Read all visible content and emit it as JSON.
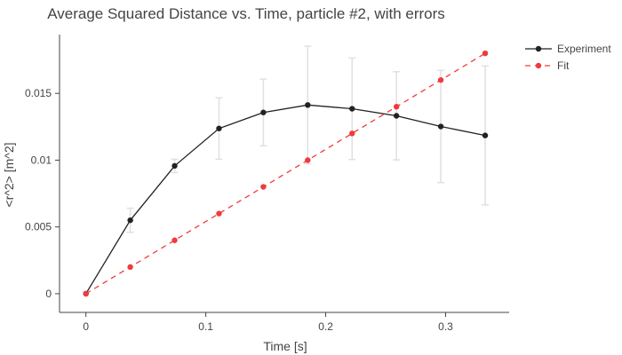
{
  "chart_data": {
    "type": "line",
    "title": "Average Squared Distance vs. Time, particle #2, with errors",
    "xlabel": "Time [s]",
    "ylabel": "<r^2> [m^2]",
    "xlim": [
      -0.022,
      0.353
    ],
    "ylim": [
      -0.0014,
      0.0194
    ],
    "x_ticks": [
      0,
      0.1,
      0.2,
      0.3
    ],
    "x_tick_labels": [
      "0",
      "0.1",
      "0.2",
      "0.3"
    ],
    "y_ticks": [
      0,
      0.005,
      0.01,
      0.015
    ],
    "y_tick_labels": [
      "0",
      "0.005",
      "0.01",
      "0.015"
    ],
    "legend_position": "top-right",
    "grid": false,
    "series": [
      {
        "name": "Experiment",
        "color": "#222222",
        "dash": "solid",
        "x": [
          0,
          0.037,
          0.074,
          0.111,
          0.148,
          0.185,
          0.222,
          0.259,
          0.296,
          0.333
        ],
        "y": [
          0,
          0.0055,
          0.00957,
          0.01237,
          0.01357,
          0.01413,
          0.01385,
          0.01332,
          0.01252,
          0.01185
        ],
        "errors": [
          0,
          0.0009,
          0.0005,
          0.0023,
          0.0025,
          0.0044,
          0.0038,
          0.0033,
          0.0042,
          0.0052
        ]
      },
      {
        "name": "Fit",
        "color": "#ef3b3b",
        "dash": "dashed",
        "x": [
          0,
          0.037,
          0.074,
          0.111,
          0.148,
          0.185,
          0.222,
          0.259,
          0.296,
          0.333
        ],
        "y": [
          0,
          0.002,
          0.004,
          0.006,
          0.008,
          0.01,
          0.012,
          0.014,
          0.016,
          0.018
        ]
      }
    ]
  }
}
